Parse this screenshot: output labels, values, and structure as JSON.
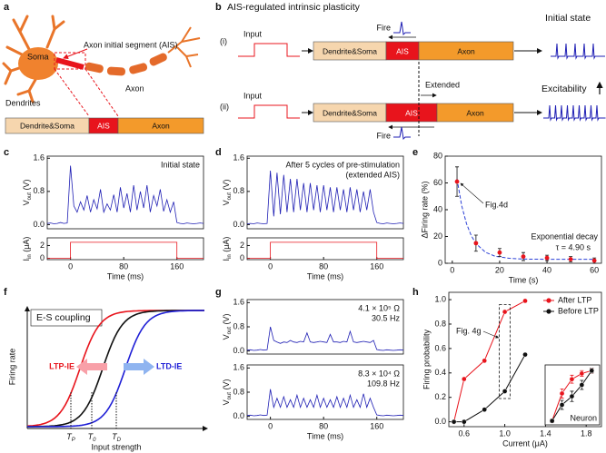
{
  "panel_labels": [
    "a",
    "b",
    "c",
    "d",
    "e",
    "f",
    "g",
    "h"
  ],
  "neuron": {
    "soma": "Soma",
    "ais": "Axon initial segment (AIS)",
    "dendrites": "Dendrites",
    "axon": "Axon",
    "bar": [
      "Dendrite&Soma",
      "AIS",
      "Axon"
    ]
  },
  "ais_diagram": {
    "title": "AIS-regulated intrinsic plasticity",
    "rows": [
      {
        "label": "(i)",
        "input": "Input",
        "segments": [
          "Dendrite&Soma",
          "AIS",
          "Axon"
        ],
        "fire": "Fire",
        "state": "Initial state"
      },
      {
        "label": "(ii)",
        "input": "Input",
        "segments": [
          "Dendrite&Soma",
          "AIS",
          "Axon"
        ],
        "fire": "Fire",
        "extended": "Extended",
        "state": "Excitability"
      }
    ]
  },
  "es_coupling": {
    "title": "E-S coupling",
    "ylabel": "Firing rate",
    "xlabel": "Input strength",
    "ltp": "LTP-IE",
    "ltd": "LTD-IE",
    "thresholds": [
      [
        "T",
        "P"
      ],
      [
        "T",
        "0"
      ],
      [
        "T",
        "D"
      ]
    ]
  },
  "chart_data": [
    {
      "type": "line",
      "ylabel": [
        "V",
        "out",
        " (V)"
      ],
      "annotations": [
        "Initial state"
      ],
      "xlim": [
        -35,
        200
      ],
      "ylim": [
        -0.1,
        1.65
      ],
      "yticks": [
        {
          "value": 0,
          "label": "0.0"
        },
        0.8,
        1.6
      ],
      "x": [
        -35,
        -30,
        -25,
        -20,
        -15,
        -10,
        -5,
        0,
        5,
        10,
        15,
        20,
        25,
        30,
        35,
        40,
        45,
        50,
        55,
        60,
        65,
        70,
        75,
        80,
        85,
        90,
        95,
        100,
        105,
        110,
        115,
        120,
        125,
        130,
        135,
        140,
        145,
        150,
        155,
        160,
        165,
        170,
        175,
        180,
        185,
        190,
        195,
        200
      ],
      "series": [
        {
          "color": "#1f1fb4",
          "values": [
            0.03,
            0.04,
            0.02,
            0.03,
            0.05,
            0.03,
            0.04,
            1.42,
            0.45,
            0.3,
            0.55,
            0.35,
            0.7,
            0.3,
            0.6,
            0.38,
            0.85,
            0.3,
            0.5,
            0.35,
            0.72,
            0.3,
            0.9,
            0.4,
            0.75,
            0.3,
            0.95,
            0.35,
            0.8,
            0.4,
            0.95,
            0.3,
            0.7,
            0.45,
            0.85,
            0.32,
            0.6,
            0.3,
            0.55,
            0.05,
            0.03,
            0.02,
            0.04,
            0.03,
            0.02,
            0.03,
            0.04,
            0.03
          ]
        }
      ]
    },
    {
      "type": "line",
      "ylabel": [
        "I",
        "in",
        " (μA)"
      ],
      "xlabel": "Time (ms)",
      "xlim": [
        -35,
        200
      ],
      "ylim": [
        -0.2,
        3.2
      ],
      "yticks": [
        0,
        2
      ],
      "xticks": [
        0,
        80,
        160
      ],
      "x": [
        -35,
        0,
        0,
        160,
        160,
        200
      ],
      "series": [
        {
          "color": "#e8141c",
          "values": [
            0,
            0,
            2.5,
            2.5,
            0,
            0
          ]
        }
      ]
    },
    {
      "type": "line",
      "ylabel": [
        "V",
        "out",
        " (V)"
      ],
      "annotations": [
        "After 5 cycles of pre-stimulation",
        "(extended AIS)"
      ],
      "xlim": [
        -35,
        200
      ],
      "ylim": [
        -0.1,
        1.65
      ],
      "yticks": [
        {
          "value": 0,
          "label": "0.0"
        },
        0.8,
        1.6
      ],
      "x": [
        -35,
        -30,
        -25,
        -20,
        -15,
        -10,
        -5,
        0,
        5,
        10,
        15,
        20,
        25,
        30,
        35,
        40,
        45,
        50,
        55,
        60,
        65,
        70,
        75,
        80,
        85,
        90,
        95,
        100,
        105,
        110,
        115,
        120,
        125,
        130,
        135,
        140,
        145,
        150,
        155,
        160,
        165,
        170,
        175,
        180,
        185,
        190,
        195,
        200
      ],
      "series": [
        {
          "color": "#1f1fb4",
          "values": [
            0.02,
            0.03,
            0.02,
            0.04,
            0.03,
            0.02,
            0.03,
            1.3,
            0.2,
            1.25,
            0.25,
            1.2,
            0.3,
            1.1,
            0.3,
            1.1,
            0.35,
            1.0,
            0.3,
            1.0,
            0.35,
            0.95,
            0.3,
            0.95,
            0.35,
            0.9,
            0.3,
            0.9,
            0.35,
            0.85,
            0.3,
            0.9,
            0.35,
            0.85,
            0.3,
            0.8,
            0.35,
            0.85,
            0.3,
            0.05,
            0.03,
            0.02,
            0.04,
            0.03,
            0.02,
            0.03,
            0.04,
            0.03
          ]
        }
      ]
    },
    {
      "type": "line",
      "ylabel": [
        "I",
        "in",
        " (μA)"
      ],
      "xlabel": "Time (ms)",
      "xlim": [
        -35,
        200
      ],
      "ylim": [
        -0.2,
        3.2
      ],
      "yticks": [
        0,
        2
      ],
      "xticks": [
        0,
        80,
        160
      ],
      "x": [
        -35,
        0,
        0,
        160,
        160,
        200
      ],
      "series": [
        {
          "color": "#e8141c",
          "values": [
            0,
            0,
            2.5,
            2.5,
            0,
            0
          ]
        }
      ]
    },
    {
      "type": "scatter",
      "ylabel": "ΔFiring rate (%)",
      "xlabel": "Time (s)",
      "annotations": [
        "Fig.4d",
        "Exponential decay",
        "τ = 4.90 s"
      ],
      "xlim": [
        -3,
        63
      ],
      "ylim": [
        0,
        80
      ],
      "yticks": [
        0,
        20,
        40,
        60,
        80
      ],
      "xticks": [
        0,
        20,
        40,
        60
      ],
      "x": [
        2,
        10,
        20,
        30,
        40,
        50,
        60
      ],
      "values": [
        61,
        15,
        8,
        5,
        4,
        3,
        2
      ],
      "errors": [
        11,
        6,
        3,
        3,
        2,
        2,
        2
      ],
      "color": "#e8141c",
      "fit": {
        "color": "#2a3fd6",
        "x": [
          2,
          4,
          6,
          8,
          10,
          14,
          18,
          24,
          30,
          40,
          50,
          60
        ],
        "values": [
          63,
          42.9,
          29.5,
          20.6,
          14.7,
          8.2,
          5.3,
          3.7,
          3.1,
          3.0,
          3.0,
          3.0
        ]
      }
    },
    {
      "type": "line",
      "ylabel": [
        "V",
        "out",
        " (V)"
      ],
      "annotations": [
        "4.1 × 10⁵ Ω",
        "30.5 Hz"
      ],
      "xlim": [
        -35,
        200
      ],
      "ylim": [
        -0.1,
        1.7
      ],
      "yticks": [
        {
          "value": 0,
          "label": "0.0"
        },
        0.8,
        1.6
      ],
      "x": [
        -35,
        -30,
        -25,
        -20,
        -15,
        -10,
        -5,
        0,
        5,
        10,
        15,
        20,
        25,
        30,
        35,
        40,
        45,
        50,
        55,
        60,
        65,
        70,
        75,
        80,
        85,
        90,
        95,
        100,
        105,
        110,
        115,
        120,
        125,
        130,
        135,
        140,
        145,
        150,
        155,
        160,
        165,
        170,
        175,
        180,
        185,
        190,
        195,
        200
      ],
      "series": [
        {
          "color": "#1f1fb4",
          "values": [
            0.03,
            0.04,
            0.02,
            0.03,
            0.05,
            0.03,
            0.04,
            0.8,
            0.35,
            0.3,
            0.25,
            0.3,
            0.28,
            0.35,
            0.3,
            0.28,
            0.32,
            0.3,
            0.6,
            0.3,
            0.28,
            0.3,
            0.32,
            0.3,
            0.28,
            0.55,
            0.3,
            0.3,
            0.28,
            0.32,
            0.3,
            0.65,
            0.3,
            0.28,
            0.3,
            0.32,
            0.3,
            0.28,
            0.35,
            0.05,
            0.03,
            0.02,
            0.04,
            0.03,
            0.02,
            0.03,
            0.04,
            0.03
          ]
        }
      ]
    },
    {
      "type": "line",
      "ylabel": [
        "V",
        "out",
        " (V)"
      ],
      "xlabel": "Time (ms)",
      "annotations": [
        "8.3 × 10⁴ Ω",
        "109.8 Hz"
      ],
      "xlim": [
        -35,
        200
      ],
      "ylim": [
        -0.1,
        1.7
      ],
      "yticks": [
        {
          "value": 0,
          "label": "0.0"
        },
        0.8,
        1.6
      ],
      "xticks": [
        0,
        80,
        160
      ],
      "x": [
        -35,
        -30,
        -25,
        -20,
        -15,
        -10,
        -5,
        0,
        5,
        10,
        15,
        20,
        25,
        30,
        35,
        40,
        45,
        50,
        55,
        60,
        65,
        70,
        75,
        80,
        85,
        90,
        95,
        100,
        105,
        110,
        115,
        120,
        125,
        130,
        135,
        140,
        145,
        150,
        155,
        160,
        165,
        170,
        175,
        180,
        185,
        190,
        195,
        200
      ],
      "series": [
        {
          "color": "#1f1fb4",
          "values": [
            0.03,
            0.04,
            0.02,
            0.03,
            0.05,
            0.03,
            0.04,
            0.9,
            0.3,
            0.6,
            0.3,
            0.65,
            0.3,
            0.55,
            0.3,
            0.7,
            0.3,
            0.6,
            0.3,
            0.55,
            0.3,
            0.7,
            0.3,
            0.6,
            0.3,
            0.55,
            0.3,
            0.65,
            0.3,
            0.6,
            0.3,
            0.7,
            0.3,
            0.55,
            0.3,
            0.75,
            0.3,
            0.6,
            0.3,
            0.05,
            0.03,
            0.02,
            0.04,
            0.03,
            0.02,
            0.03,
            0.04,
            0.03
          ]
        }
      ]
    },
    {
      "type": "line",
      "ylabel": "Firing probability",
      "xlabel": "Current (μA)",
      "annotations": [
        "Fig. 4g"
      ],
      "legend": "upper right",
      "xlim": [
        0.45,
        1.95
      ],
      "ylim": [
        -0.04,
        1.06
      ],
      "yticks": [
        {
          "value": 0,
          "label": "0.0"
        },
        0.2,
        0.4,
        0.6,
        0.8,
        {
          "value": 1,
          "label": "1.0"
        }
      ],
      "xticks": [
        0.6,
        {
          "value": 1,
          "label": "1.0"
        },
        1.4,
        1.8
      ],
      "x": [
        0.5,
        0.6,
        0.8,
        1.0,
        1.2
      ],
      "series": [
        {
          "name": "After LTP",
          "color": "#e8141c",
          "values": [
            0,
            0.35,
            0.5,
            0.9,
            0.99
          ]
        },
        {
          "name": "Before LTP",
          "color": "#111111",
          "values": [
            0,
            0,
            0.1,
            0.25,
            0.55
          ]
        }
      ]
    },
    {
      "type": "line",
      "annotations": [
        "Neuron"
      ],
      "xlim": [
        1.33,
        1.88
      ],
      "ylim": [
        -0.05,
        1.0
      ],
      "x": [
        1.4,
        1.5,
        1.6,
        1.7,
        1.8
      ],
      "series": [
        {
          "color": "#e8141c",
          "values": [
            0.02,
            0.5,
            0.75,
            0.85,
            0.9
          ],
          "errors": [
            0.03,
            0.08,
            0.07,
            0.05,
            0.04
          ]
        },
        {
          "color": "#111111",
          "values": [
            0.02,
            0.3,
            0.45,
            0.65,
            0.9
          ],
          "errors": [
            0.03,
            0.08,
            0.09,
            0.08,
            0.04
          ]
        }
      ]
    }
  ]
}
